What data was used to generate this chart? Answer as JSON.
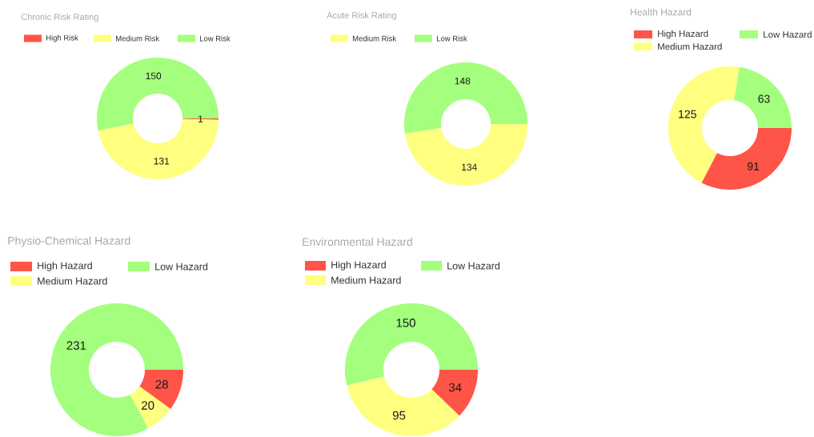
{
  "chart_data": [
    {
      "type": "donut",
      "title": "Chronic Risk Rating",
      "categories": [
        "High Risk",
        "Medium Risk",
        "Low Risk"
      ],
      "values": [
        1,
        131,
        150
      ],
      "colors": [
        "#ff5448",
        "#ffff80",
        "#a3ff7d"
      ],
      "data_labels": true,
      "legend": "top left"
    },
    {
      "type": "donut",
      "title": "Acute Risk Rating",
      "categories": [
        "Medium Risk",
        "Low Risk"
      ],
      "values": [
        134,
        148
      ],
      "colors": [
        "#ffff80",
        "#a3ff7d"
      ],
      "data_labels": true,
      "legend": "top left"
    },
    {
      "type": "donut",
      "title": "Health Hazard",
      "categories": [
        "High Hazard",
        "Medium Hazard",
        "Low Hazard"
      ],
      "values": [
        91,
        125,
        63
      ],
      "colors": [
        "#ff5448",
        "#ffff80",
        "#a3ff7d"
      ],
      "data_labels": true,
      "legend": "top left"
    },
    {
      "type": "donut",
      "title": "Physio-Chemical Hazard",
      "categories": [
        "High Hazard",
        "Medium Hazard",
        "Low Hazard"
      ],
      "values": [
        28,
        20,
        231
      ],
      "colors": [
        "#ff5448",
        "#ffff80",
        "#a3ff7d"
      ],
      "data_labels": true,
      "legend": "top left"
    },
    {
      "type": "donut",
      "title": "Environmental Hazard",
      "categories": [
        "High Hazard",
        "Medium Hazard",
        "Low Hazard"
      ],
      "values": [
        34,
        95,
        150
      ],
      "colors": [
        "#ff5448",
        "#ffff80",
        "#a3ff7d"
      ],
      "data_labels": true,
      "legend": "top left"
    }
  ]
}
